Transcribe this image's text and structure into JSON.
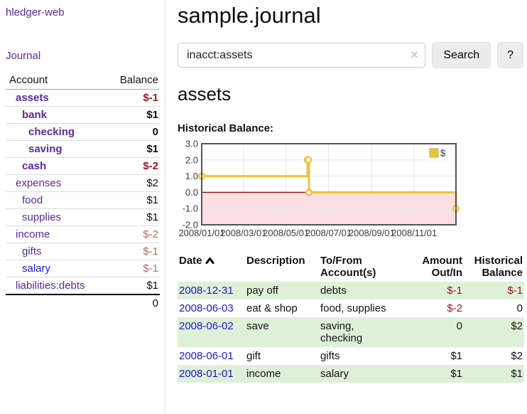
{
  "colors": {
    "link_purple": "#5b2a9d",
    "link_blue": "#1717d6",
    "negative_strong": "#9d1628",
    "negative_soft": "#b26b6b",
    "striped_row_green": "#dff0d8",
    "chart_gold": "#edc240",
    "chart_negative_fill": "#fbdfe1",
    "chart_zero_line": "#8b0000",
    "chart_border": "#545454",
    "chart_grid": "#e6e6e6"
  },
  "sidebar": {
    "brand": "hledger-web",
    "journal_link": "Journal",
    "accounts": {
      "col_account": "Account",
      "col_balance": "Balance",
      "rows": [
        {
          "name": "assets",
          "balance": "$-1",
          "depth": 0,
          "matched": true,
          "balance_class": "neg-strong"
        },
        {
          "name": "bank",
          "balance": "$1",
          "depth": 1,
          "matched": true,
          "balance_class": ""
        },
        {
          "name": "checking",
          "balance": "0",
          "depth": 2,
          "matched": true,
          "balance_class": ""
        },
        {
          "name": "saving",
          "balance": "$1",
          "depth": 2,
          "matched": true,
          "balance_class": ""
        },
        {
          "name": "cash",
          "balance": "$-2",
          "depth": 1,
          "matched": true,
          "balance_class": "neg-strong"
        },
        {
          "name": "expenses",
          "balance": "$2",
          "depth": 0,
          "matched": false,
          "balance_class": ""
        },
        {
          "name": "food",
          "balance": "$1",
          "depth": 1,
          "matched": false,
          "balance_class": ""
        },
        {
          "name": "supplies",
          "balance": "$1",
          "depth": 1,
          "matched": false,
          "balance_class": ""
        },
        {
          "name": "income",
          "balance": "$-2",
          "depth": 0,
          "matched": false,
          "balance_class": "neg-soft"
        },
        {
          "name": "gifts",
          "balance": "$-1",
          "depth": 1,
          "matched": false,
          "balance_class": "neg-soft"
        },
        {
          "name": "salary",
          "balance": "$-1",
          "depth": 1,
          "matched": false,
          "balance_class": "neg-soft",
          "link_class": "blue"
        },
        {
          "name": "liabilities:debts",
          "balance": "$1",
          "depth": 0,
          "matched": false,
          "balance_class": ""
        }
      ],
      "total": "0"
    }
  },
  "main": {
    "title": "sample.journal",
    "search": {
      "value": "inacct:assets",
      "clear_icon": "✕",
      "search_button": "Search",
      "help_button": "?"
    },
    "account_heading": "assets",
    "chart_label": "Historical Balance:",
    "register": {
      "headers": {
        "date": "Date",
        "description": "Description",
        "tofrom": "To/From\nAccount(s)",
        "amount": "Amount\nOut/In",
        "balance": "Historical\nBalance"
      },
      "rows": [
        {
          "date": "2008-12-31",
          "description": "pay off",
          "accounts": "debts",
          "amount": "$-1",
          "balance": "$-1",
          "amount_class": "amt-neg",
          "balance_class": "amt-neg",
          "striped": true
        },
        {
          "date": "2008-06-03",
          "description": "eat & shop",
          "accounts": "food, supplies",
          "amount": "$-2",
          "balance": "0",
          "amount_class": "amt-neg",
          "balance_class": "",
          "striped": false
        },
        {
          "date": "2008-06-02",
          "description": "save",
          "accounts": "saving,\nchecking",
          "amount": "0",
          "balance": "$2",
          "amount_class": "",
          "balance_class": "",
          "striped": true
        },
        {
          "date": "2008-06-01",
          "description": "gift",
          "accounts": "gifts",
          "amount": "$1",
          "balance": "$2",
          "amount_class": "",
          "balance_class": "",
          "striped": false
        },
        {
          "date": "2008-01-01",
          "description": "income",
          "accounts": "salary",
          "amount": "$1",
          "balance": "$1",
          "amount_class": "",
          "balance_class": "",
          "striped": true
        }
      ]
    }
  },
  "chart_data": {
    "type": "line",
    "step": true,
    "title": "Historical Balance:",
    "series": [
      {
        "name": "$",
        "color": "#edc240",
        "points": [
          [
            "2008-01-01",
            1
          ],
          [
            "2008-06-01",
            2
          ],
          [
            "2008-06-02",
            2
          ],
          [
            "2008-06-03",
            0
          ],
          [
            "2008-12-31",
            -1
          ]
        ]
      }
    ],
    "xlim": [
      "2008-01-01",
      "2008-12-31"
    ],
    "ylim": [
      -2,
      3
    ],
    "yticks": [
      "3.0",
      "2.0",
      "1.0",
      "0.0",
      "-1.0",
      "-2.0"
    ],
    "xticks": [
      "2008/01/01",
      "2008/03/01",
      "2008/05/01",
      "2008/07/01",
      "2008/09/01",
      "2008/11/01"
    ],
    "legend": {
      "label": "$",
      "position": "top-right"
    },
    "grid": true,
    "zero_line_color": "#8b0000",
    "negative_region_fill": "#fbdfe1",
    "border_color": "#545454",
    "grid_color": "#e6e6e6"
  }
}
